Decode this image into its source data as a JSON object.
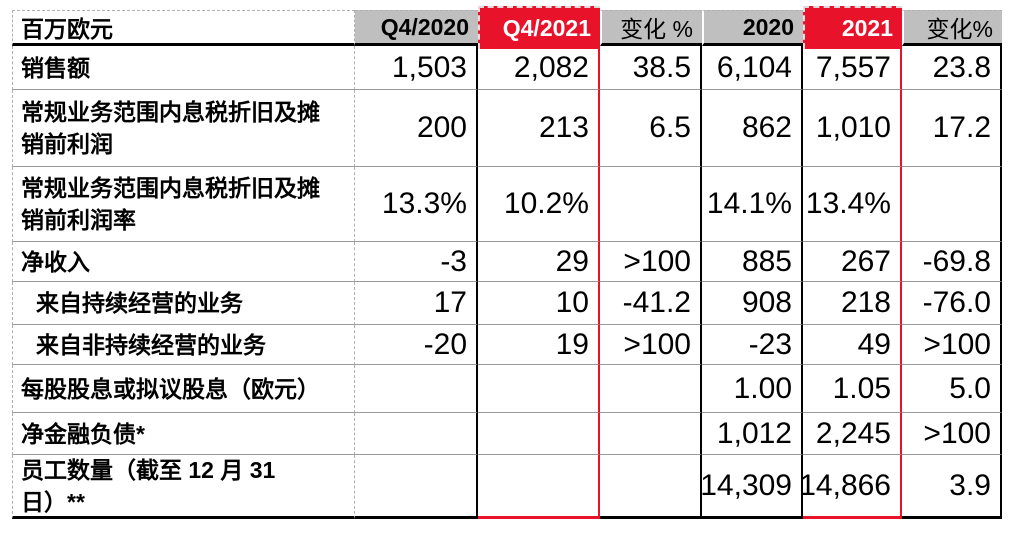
{
  "colors": {
    "accent_red": "#e8132b",
    "header_gray": "#bfbfbf",
    "row_separator_gray": "#9a9a9a",
    "dashed_border_gray": "#b0b0b0",
    "border_black": "#000000"
  },
  "table": {
    "columns": [
      {
        "key": "metric",
        "label": "百万欧元",
        "style": "plain",
        "bold": true
      },
      {
        "key": "q4-2020",
        "label": "Q4/2020",
        "style": "gray",
        "bold": true
      },
      {
        "key": "q4-2021",
        "label": "Q4/2021",
        "style": "red",
        "bold": true
      },
      {
        "key": "change-quarter",
        "label": "变化 %",
        "style": "gray",
        "bold": false
      },
      {
        "key": "fy-2020",
        "label": "2020",
        "style": "gray",
        "bold": true
      },
      {
        "key": "fy-2021",
        "label": "2021",
        "style": "red",
        "bold": true
      },
      {
        "key": "change-year",
        "label": "变化%",
        "style": "gray",
        "bold": false
      }
    ],
    "rows": [
      {
        "label": "销售额",
        "indent": false,
        "values": [
          "1,503",
          "2,082",
          "38.5",
          "6,104",
          "7,557",
          "23.8"
        ]
      },
      {
        "label": "常规业务范围内息税折旧及摊\n销前利润",
        "indent": false,
        "values": [
          "200",
          "213",
          "6.5",
          "862",
          "1,010",
          "17.2"
        ]
      },
      {
        "label": "常规业务范围内息税折旧及摊\n销前利润率",
        "indent": false,
        "values": [
          "13.3%",
          "10.2%",
          "",
          "14.1%",
          "13.4%",
          ""
        ]
      },
      {
        "label": "净收入",
        "indent": false,
        "values": [
          "-3",
          "29",
          ">100",
          "885",
          "267",
          "-69.8"
        ]
      },
      {
        "label": "来自持续经营的业务",
        "indent": true,
        "values": [
          "17",
          "10",
          "-41.2",
          "908",
          "218",
          "-76.0"
        ]
      },
      {
        "label": "来自非持续经营的业务",
        "indent": true,
        "values": [
          "-20",
          "19",
          ">100",
          "-23",
          "49",
          ">100"
        ]
      },
      {
        "label": "每股股息或拟议股息（欧元）",
        "indent": false,
        "values": [
          "",
          "",
          "",
          "1.00",
          "1.05",
          "5.0"
        ]
      },
      {
        "label": "净金融负债*",
        "indent": false,
        "values": [
          "",
          "",
          "",
          "1,012",
          "2,245",
          ">100"
        ]
      },
      {
        "label": "员工数量（截至 12 月 31\n日）**",
        "indent": false,
        "values": [
          "",
          "",
          "",
          "14,309",
          "14,866",
          "3.9"
        ]
      }
    ]
  }
}
